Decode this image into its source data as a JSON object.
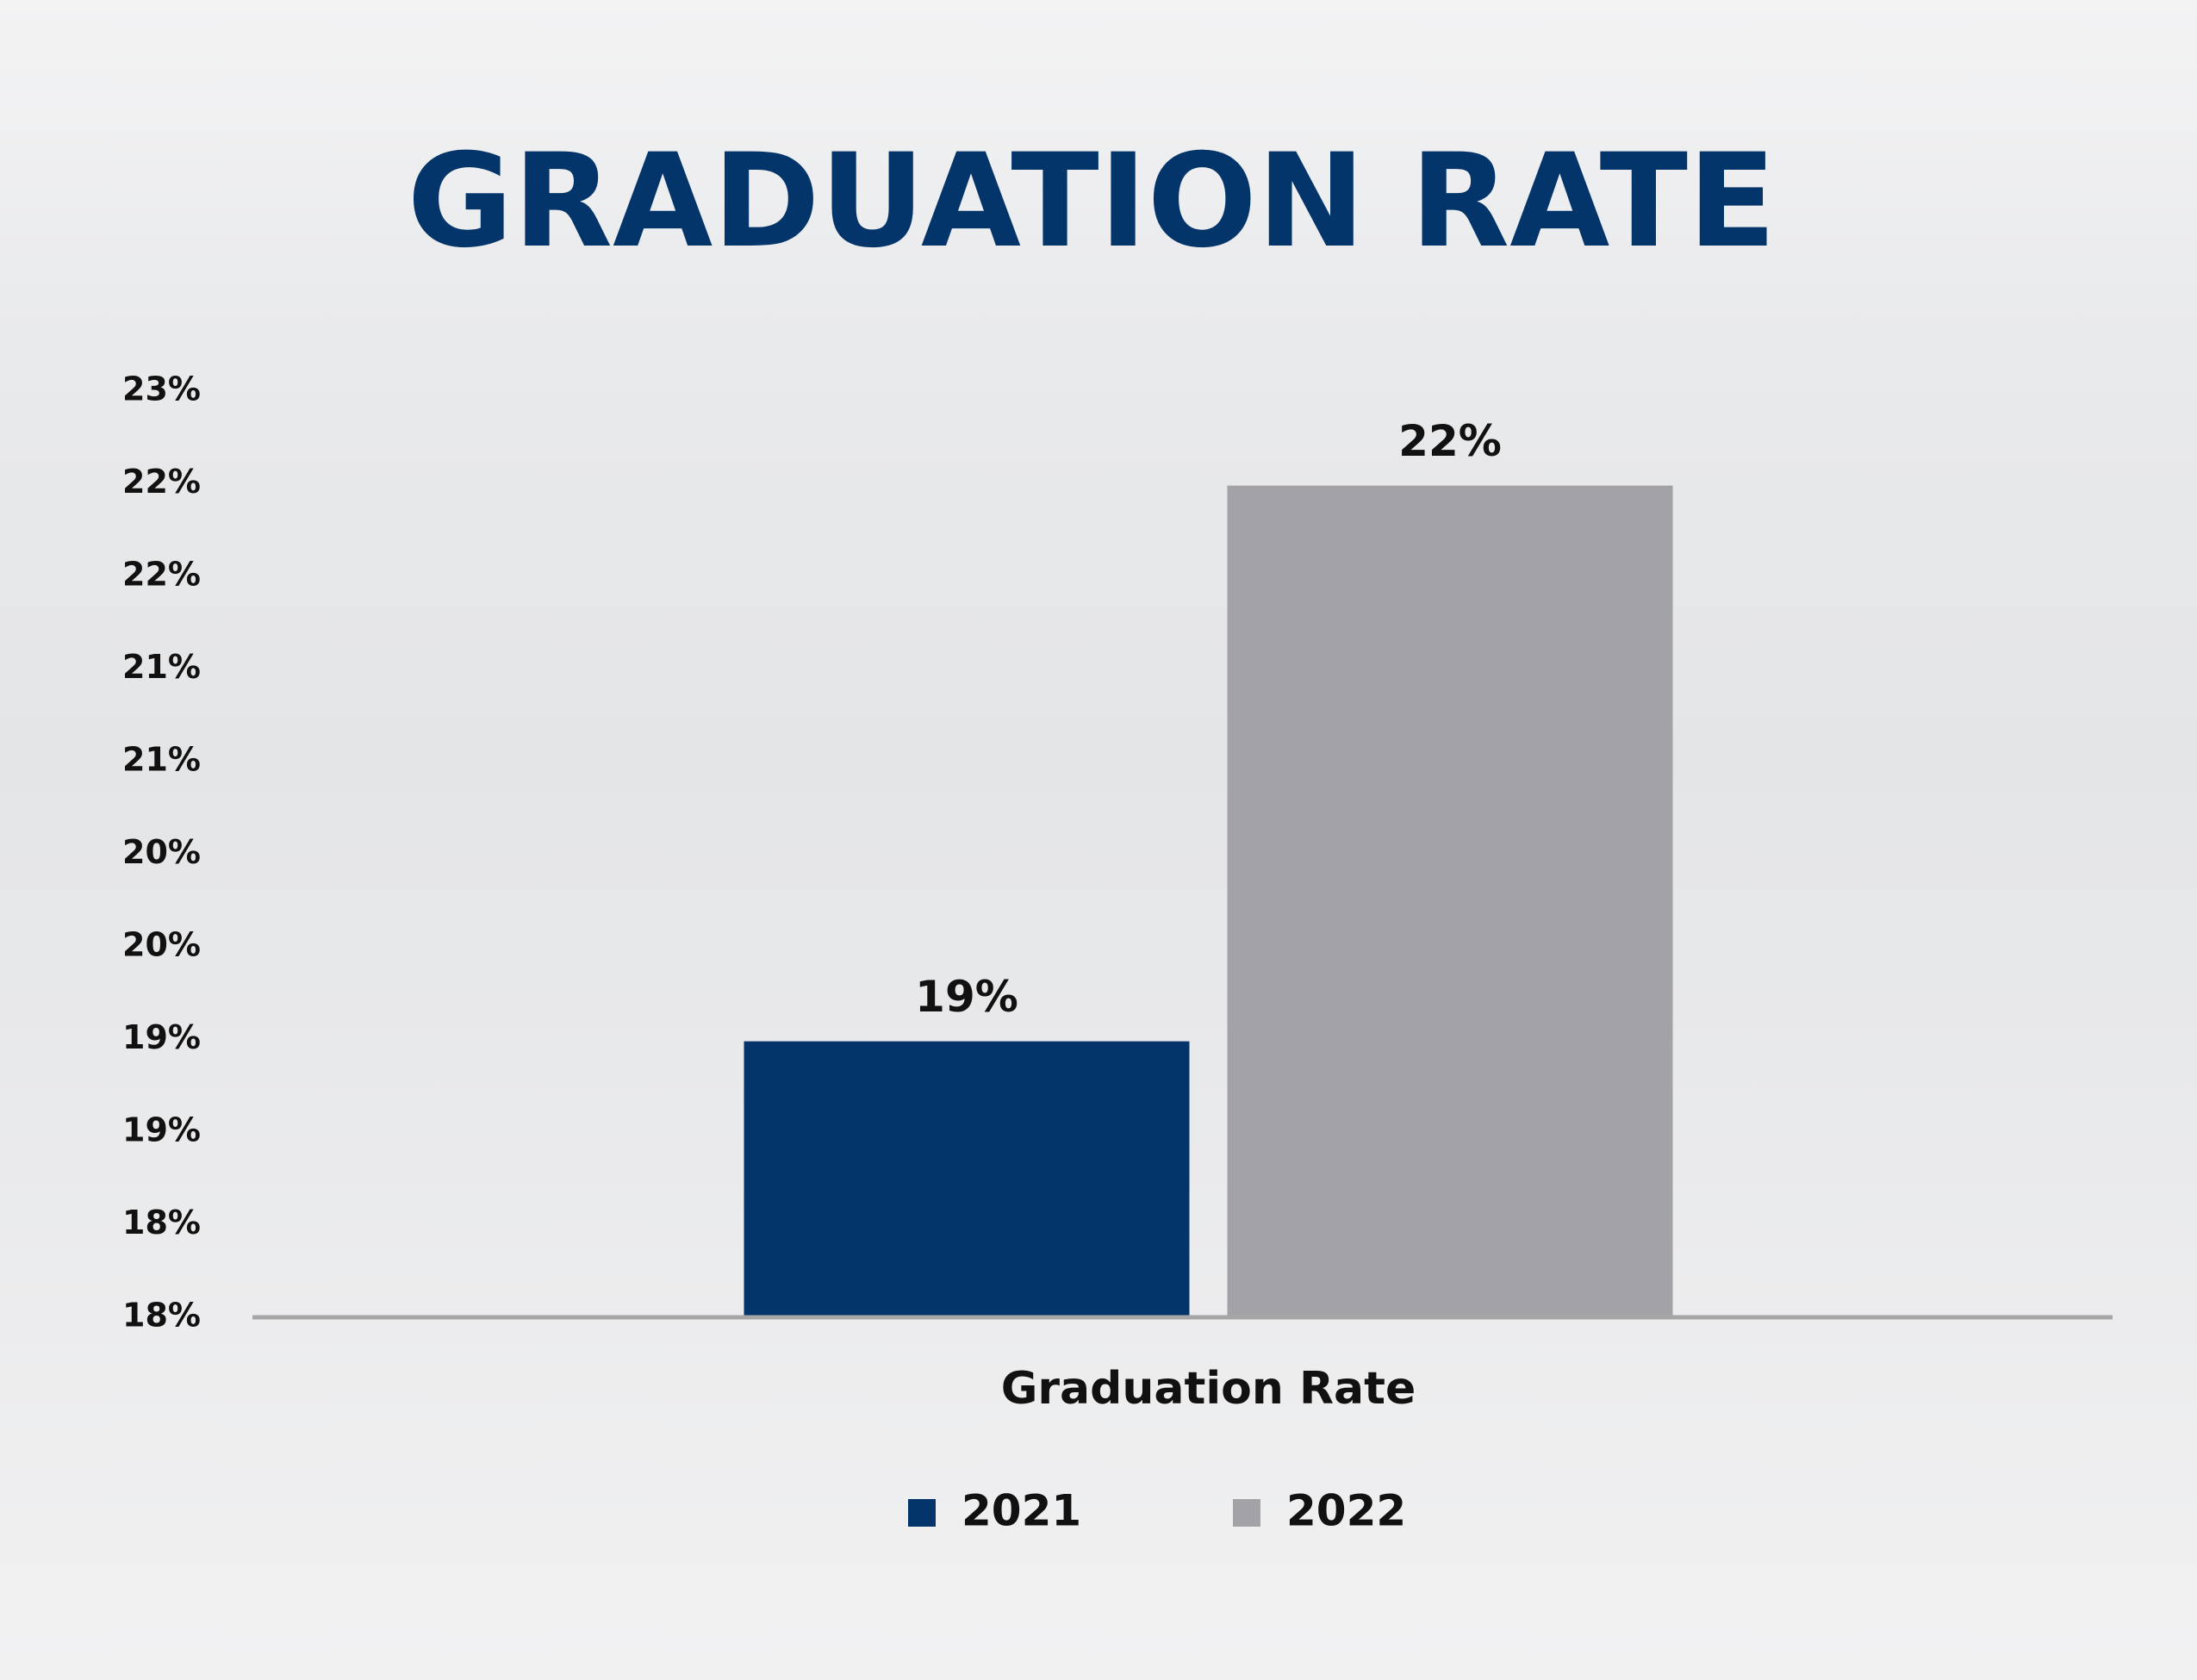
{
  "chart_data": {
    "type": "bar",
    "title": "GRADUATION RATE",
    "categories": [
      "Graduation Rate"
    ],
    "series": [
      {
        "name": "2021",
        "color": "#03356a",
        "values": [
          19.49
        ],
        "value_labels": [
          "19%"
        ]
      },
      {
        "name": "2022",
        "color": "#a3a2a7",
        "values": [
          22.49
        ],
        "value_labels": [
          "22%"
        ]
      }
    ],
    "ylim": [
      18,
      23
    ],
    "yticks": [
      {
        "value": 18,
        "label": "18%"
      },
      {
        "value": 18.5,
        "label": "18%"
      },
      {
        "value": 19,
        "label": "19%"
      },
      {
        "value": 19.5,
        "label": "19%"
      },
      {
        "value": 20,
        "label": "20%"
      },
      {
        "value": 20.5,
        "label": "20%"
      },
      {
        "value": 21,
        "label": "21%"
      },
      {
        "value": 21.5,
        "label": "21%"
      },
      {
        "value": 22,
        "label": "22%"
      },
      {
        "value": 22.5,
        "label": "22%"
      },
      {
        "value": 23,
        "label": "23%"
      }
    ],
    "legend": "bottom"
  }
}
